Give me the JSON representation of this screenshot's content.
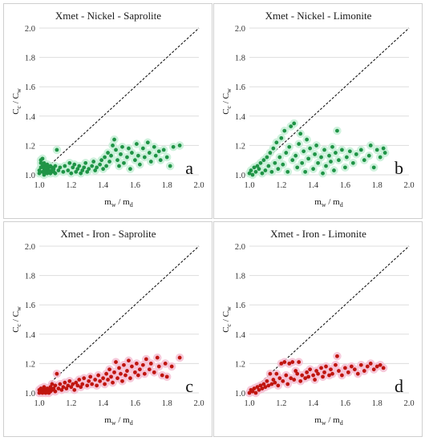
{
  "colors": {
    "green_point": "#1f9446",
    "green_halo": "#c6eed6",
    "red_point": "#c0150f",
    "red_halo": "#f5c0d4",
    "gridline": "#dddddd",
    "reference_line": "#000000"
  },
  "chart_data": [
    {
      "type": "scatter",
      "title": "Xmet - Nickel - Saprolite",
      "panel_letter": "a",
      "xlabel": "m_w / m_d",
      "ylabel": "C_c / C_w",
      "xlim": [
        1.0,
        2.0
      ],
      "ylim": [
        1.0,
        2.0
      ],
      "xticks": [
        "1.0",
        "1.2",
        "1.4",
        "1.6",
        "1.8",
        "2.0"
      ],
      "yticks": [
        "1.0",
        "1.2",
        "1.4",
        "1.6",
        "1.8",
        "2.0"
      ],
      "grid": "horizontal",
      "reference_line": "y = x",
      "point_color": "green",
      "points": [
        [
          1.0,
          1.01
        ],
        [
          1.0,
          1.03
        ],
        [
          1.01,
          1.05
        ],
        [
          1.01,
          1.08
        ],
        [
          1.01,
          1.1
        ],
        [
          1.02,
          1.02
        ],
        [
          1.02,
          1.06
        ],
        [
          1.02,
          1.11
        ],
        [
          1.03,
          1.0
        ],
        [
          1.03,
          1.04
        ],
        [
          1.03,
          1.08
        ],
        [
          1.04,
          1.02
        ],
        [
          1.04,
          1.06
        ],
        [
          1.05,
          1.01
        ],
        [
          1.05,
          1.04
        ],
        [
          1.05,
          1.07
        ],
        [
          1.06,
          1.03
        ],
        [
          1.06,
          1.05
        ],
        [
          1.07,
          1.01
        ],
        [
          1.07,
          1.06
        ],
        [
          1.08,
          1.03
        ],
        [
          1.08,
          1.05
        ],
        [
          1.09,
          1.02
        ],
        [
          1.09,
          1.04
        ],
        [
          1.1,
          1.01
        ],
        [
          1.1,
          1.06
        ],
        [
          1.11,
          1.17
        ],
        [
          1.12,
          1.03
        ],
        [
          1.13,
          1.05
        ],
        [
          1.15,
          1.02
        ],
        [
          1.16,
          1.06
        ],
        [
          1.18,
          1.03
        ],
        [
          1.19,
          1.08
        ],
        [
          1.2,
          1.01
        ],
        [
          1.21,
          1.05
        ],
        [
          1.22,
          1.07
        ],
        [
          1.23,
          1.02
        ],
        [
          1.24,
          1.04
        ],
        [
          1.25,
          1.06
        ],
        [
          1.26,
          1.01
        ],
        [
          1.27,
          1.03
        ],
        [
          1.28,
          1.05
        ],
        [
          1.29,
          1.08
        ],
        [
          1.3,
          1.02
        ],
        [
          1.31,
          1.04
        ],
        [
          1.33,
          1.06
        ],
        [
          1.34,
          1.09
        ],
        [
          1.35,
          1.03
        ],
        [
          1.36,
          1.05
        ],
        [
          1.38,
          1.07
        ],
        [
          1.39,
          1.1
        ],
        [
          1.4,
          1.04
        ],
        [
          1.41,
          1.12
        ],
        [
          1.42,
          1.06
        ],
        [
          1.43,
          1.15
        ],
        [
          1.44,
          1.09
        ],
        [
          1.45,
          1.13
        ],
        [
          1.46,
          1.2
        ],
        [
          1.47,
          1.24
        ],
        [
          1.48,
          1.17
        ],
        [
          1.49,
          1.1
        ],
        [
          1.5,
          1.06
        ],
        [
          1.51,
          1.14
        ],
        [
          1.52,
          1.19
        ],
        [
          1.53,
          1.08
        ],
        [
          1.55,
          1.12
        ],
        [
          1.56,
          1.18
        ],
        [
          1.57,
          1.04
        ],
        [
          1.58,
          1.15
        ],
        [
          1.6,
          1.1
        ],
        [
          1.61,
          1.21
        ],
        [
          1.62,
          1.13
        ],
        [
          1.63,
          1.07
        ],
        [
          1.65,
          1.18
        ],
        [
          1.66,
          1.12
        ],
        [
          1.68,
          1.22
        ],
        [
          1.69,
          1.15
        ],
        [
          1.7,
          1.09
        ],
        [
          1.72,
          1.19
        ],
        [
          1.73,
          1.13
        ],
        [
          1.75,
          1.16
        ],
        [
          1.76,
          1.1
        ],
        [
          1.78,
          1.17
        ],
        [
          1.8,
          1.12
        ],
        [
          1.82,
          1.06
        ],
        [
          1.84,
          1.19
        ],
        [
          1.88,
          1.2
        ]
      ]
    },
    {
      "type": "scatter",
      "title": "Xmet - Nickel - Limonite",
      "panel_letter": "b",
      "xlabel": "m_w / m_d",
      "ylabel": "C_c / C_w",
      "xlim": [
        1.0,
        2.0
      ],
      "ylim": [
        1.0,
        2.0
      ],
      "xticks": [
        "1.0",
        "1.2",
        "1.4",
        "1.6",
        "1.8",
        "2.0"
      ],
      "yticks": [
        "1.0",
        "1.2",
        "1.4",
        "1.6",
        "1.8",
        "2.0"
      ],
      "grid": "horizontal",
      "reference_line": "y = x",
      "point_color": "green",
      "points": [
        [
          1.0,
          1.01
        ],
        [
          1.01,
          1.03
        ],
        [
          1.02,
          1.0
        ],
        [
          1.03,
          1.05
        ],
        [
          1.04,
          1.02
        ],
        [
          1.05,
          1.06
        ],
        [
          1.06,
          1.04
        ],
        [
          1.07,
          1.08
        ],
        [
          1.08,
          1.01
        ],
        [
          1.09,
          1.1
        ],
        [
          1.1,
          1.03
        ],
        [
          1.11,
          1.12
        ],
        [
          1.12,
          1.06
        ],
        [
          1.13,
          1.15
        ],
        [
          1.14,
          1.02
        ],
        [
          1.15,
          1.18
        ],
        [
          1.16,
          1.08
        ],
        [
          1.17,
          1.22
        ],
        [
          1.18,
          1.04
        ],
        [
          1.19,
          1.12
        ],
        [
          1.2,
          1.25
        ],
        [
          1.21,
          1.07
        ],
        [
          1.22,
          1.3
        ],
        [
          1.23,
          1.15
        ],
        [
          1.24,
          1.02
        ],
        [
          1.25,
          1.19
        ],
        [
          1.26,
          1.33
        ],
        [
          1.27,
          1.1
        ],
        [
          1.28,
          1.35
        ],
        [
          1.29,
          1.13
        ],
        [
          1.3,
          1.05
        ],
        [
          1.31,
          1.21
        ],
        [
          1.32,
          1.28
        ],
        [
          1.33,
          1.08
        ],
        [
          1.34,
          1.16
        ],
        [
          1.35,
          1.02
        ],
        [
          1.36,
          1.24
        ],
        [
          1.37,
          1.11
        ],
        [
          1.38,
          1.18
        ],
        [
          1.4,
          1.04
        ],
        [
          1.41,
          1.14
        ],
        [
          1.42,
          1.2
        ],
        [
          1.43,
          1.08
        ],
        [
          1.45,
          1.12
        ],
        [
          1.46,
          1.01
        ],
        [
          1.47,
          1.17
        ],
        [
          1.48,
          1.06
        ],
        [
          1.5,
          1.13
        ],
        [
          1.51,
          1.09
        ],
        [
          1.52,
          1.19
        ],
        [
          1.53,
          1.03
        ],
        [
          1.54,
          1.15
        ],
        [
          1.55,
          1.3
        ],
        [
          1.56,
          1.1
        ],
        [
          1.58,
          1.17
        ],
        [
          1.6,
          1.05
        ],
        [
          1.61,
          1.12
        ],
        [
          1.63,
          1.16
        ],
        [
          1.65,
          1.08
        ],
        [
          1.67,
          1.14
        ],
        [
          1.7,
          1.17
        ],
        [
          1.72,
          1.1
        ],
        [
          1.75,
          1.13
        ],
        [
          1.76,
          1.2
        ],
        [
          1.78,
          1.05
        ],
        [
          1.8,
          1.17
        ],
        [
          1.82,
          1.12
        ],
        [
          1.84,
          1.18
        ],
        [
          1.85,
          1.15
        ]
      ]
    },
    {
      "type": "scatter",
      "title": "Xmet - Iron - Saprolite",
      "panel_letter": "c",
      "xlabel": "m_w / m_d",
      "ylabel": "C_c / C_w",
      "xlim": [
        1.0,
        2.0
      ],
      "ylim": [
        1.0,
        2.0
      ],
      "xticks": [
        "1.0",
        "1.2",
        "1.4",
        "1.6",
        "1.8",
        "2.0"
      ],
      "yticks": [
        "1.0",
        "1.2",
        "1.4",
        "1.6",
        "1.8",
        "2.0"
      ],
      "grid": "horizontal",
      "reference_line": "y = x",
      "point_color": "red",
      "points": [
        [
          1.0,
          1.0
        ],
        [
          1.0,
          1.02
        ],
        [
          1.01,
          1.01
        ],
        [
          1.01,
          1.03
        ],
        [
          1.02,
          1.0
        ],
        [
          1.02,
          1.02
        ],
        [
          1.03,
          1.01
        ],
        [
          1.03,
          1.04
        ],
        [
          1.04,
          1.0
        ],
        [
          1.04,
          1.02
        ],
        [
          1.05,
          1.01
        ],
        [
          1.05,
          1.03
        ],
        [
          1.06,
          1.0
        ],
        [
          1.06,
          1.02
        ],
        [
          1.07,
          1.01
        ],
        [
          1.07,
          1.04
        ],
        [
          1.08,
          1.02
        ],
        [
          1.08,
          1.06
        ],
        [
          1.09,
          1.03
        ],
        [
          1.1,
          1.01
        ],
        [
          1.1,
          1.05
        ],
        [
          1.11,
          1.13
        ],
        [
          1.12,
          1.03
        ],
        [
          1.13,
          1.06
        ],
        [
          1.14,
          1.02
        ],
        [
          1.15,
          1.04
        ],
        [
          1.16,
          1.07
        ],
        [
          1.17,
          1.03
        ],
        [
          1.18,
          1.05
        ],
        [
          1.19,
          1.08
        ],
        [
          1.2,
          1.04
        ],
        [
          1.21,
          1.06
        ],
        [
          1.22,
          1.02
        ],
        [
          1.23,
          1.07
        ],
        [
          1.24,
          1.05
        ],
        [
          1.25,
          1.09
        ],
        [
          1.26,
          1.04
        ],
        [
          1.27,
          1.06
        ],
        [
          1.28,
          1.1
        ],
        [
          1.3,
          1.05
        ],
        [
          1.31,
          1.08
        ],
        [
          1.32,
          1.11
        ],
        [
          1.33,
          1.06
        ],
        [
          1.35,
          1.09
        ],
        [
          1.36,
          1.05
        ],
        [
          1.37,
          1.12
        ],
        [
          1.38,
          1.08
        ],
        [
          1.4,
          1.1
        ],
        [
          1.41,
          1.06
        ],
        [
          1.42,
          1.13
        ],
        [
          1.43,
          1.09
        ],
        [
          1.44,
          1.16
        ],
        [
          1.45,
          1.11
        ],
        [
          1.46,
          1.07
        ],
        [
          1.47,
          1.14
        ],
        [
          1.48,
          1.21
        ],
        [
          1.49,
          1.1
        ],
        [
          1.5,
          1.17
        ],
        [
          1.51,
          1.13
        ],
        [
          1.52,
          1.08
        ],
        [
          1.53,
          1.19
        ],
        [
          1.54,
          1.12
        ],
        [
          1.55,
          1.15
        ],
        [
          1.56,
          1.22
        ],
        [
          1.57,
          1.1
        ],
        [
          1.58,
          1.18
        ],
        [
          1.6,
          1.14
        ],
        [
          1.61,
          1.2
        ],
        [
          1.62,
          1.12
        ],
        [
          1.63,
          1.16
        ],
        [
          1.65,
          1.19
        ],
        [
          1.66,
          1.13
        ],
        [
          1.67,
          1.23
        ],
        [
          1.69,
          1.16
        ],
        [
          1.7,
          1.2
        ],
        [
          1.72,
          1.14
        ],
        [
          1.74,
          1.24
        ],
        [
          1.75,
          1.18
        ],
        [
          1.77,
          1.12
        ],
        [
          1.79,
          1.2
        ],
        [
          1.8,
          1.11
        ],
        [
          1.83,
          1.18
        ],
        [
          1.88,
          1.24
        ]
      ]
    },
    {
      "type": "scatter",
      "title": "Xmet - Iron - Limonite",
      "panel_letter": "d",
      "xlabel": "m_w / m_d",
      "ylabel": "C_c / C_w",
      "xlim": [
        1.0,
        2.0
      ],
      "ylim": [
        1.0,
        2.0
      ],
      "xticks": [
        "1.0",
        "1.2",
        "1.4",
        "1.6",
        "1.8",
        "2.0"
      ],
      "yticks": [
        "1.0",
        "1.2",
        "1.4",
        "1.6",
        "1.8",
        "2.0"
      ],
      "grid": "horizontal",
      "reference_line": "y = x",
      "point_color": "red",
      "points": [
        [
          1.0,
          1.0
        ],
        [
          1.01,
          1.02
        ],
        [
          1.02,
          1.01
        ],
        [
          1.03,
          1.03
        ],
        [
          1.04,
          1.0
        ],
        [
          1.05,
          1.04
        ],
        [
          1.06,
          1.02
        ],
        [
          1.07,
          1.05
        ],
        [
          1.08,
          1.03
        ],
        [
          1.09,
          1.06
        ],
        [
          1.1,
          1.04
        ],
        [
          1.11,
          1.08
        ],
        [
          1.12,
          1.05
        ],
        [
          1.13,
          1.13
        ],
        [
          1.14,
          1.06
        ],
        [
          1.15,
          1.09
        ],
        [
          1.16,
          1.07
        ],
        [
          1.17,
          1.13
        ],
        [
          1.18,
          1.05
        ],
        [
          1.19,
          1.1
        ],
        [
          1.2,
          1.2
        ],
        [
          1.21,
          1.08
        ],
        [
          1.22,
          1.21
        ],
        [
          1.23,
          1.12
        ],
        [
          1.24,
          1.06
        ],
        [
          1.25,
          1.2
        ],
        [
          1.26,
          1.1
        ],
        [
          1.27,
          1.21
        ],
        [
          1.28,
          1.09
        ],
        [
          1.29,
          1.15
        ],
        [
          1.3,
          1.13
        ],
        [
          1.31,
          1.21
        ],
        [
          1.32,
          1.08
        ],
        [
          1.33,
          1.12
        ],
        [
          1.35,
          1.1
        ],
        [
          1.36,
          1.14
        ],
        [
          1.37,
          1.11
        ],
        [
          1.38,
          1.16
        ],
        [
          1.4,
          1.12
        ],
        [
          1.41,
          1.09
        ],
        [
          1.42,
          1.15
        ],
        [
          1.43,
          1.13
        ],
        [
          1.45,
          1.17
        ],
        [
          1.46,
          1.11
        ],
        [
          1.47,
          1.14
        ],
        [
          1.48,
          1.18
        ],
        [
          1.5,
          1.12
        ],
        [
          1.51,
          1.16
        ],
        [
          1.52,
          1.13
        ],
        [
          1.54,
          1.19
        ],
        [
          1.55,
          1.25
        ],
        [
          1.56,
          1.15
        ],
        [
          1.58,
          1.12
        ],
        [
          1.6,
          1.17
        ],
        [
          1.62,
          1.14
        ],
        [
          1.64,
          1.18
        ],
        [
          1.66,
          1.16
        ],
        [
          1.68,
          1.13
        ],
        [
          1.7,
          1.19
        ],
        [
          1.72,
          1.15
        ],
        [
          1.74,
          1.18
        ],
        [
          1.76,
          1.2
        ],
        [
          1.78,
          1.16
        ],
        [
          1.8,
          1.18
        ],
        [
          1.82,
          1.19
        ],
        [
          1.84,
          1.17
        ]
      ]
    }
  ]
}
